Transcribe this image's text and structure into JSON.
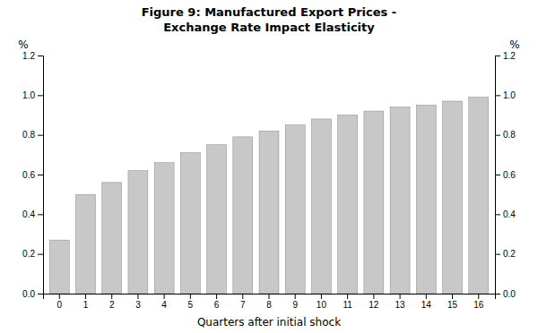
{
  "chart_data": {
    "type": "bar",
    "title": "Figure 9: Manufactured Export Prices -",
    "subtitle": "Exchange Rate Impact Elasticity",
    "xlabel": "Quarters after initial shock",
    "ylabel": "%",
    "y2label": "%",
    "categories": [
      0,
      1,
      2,
      3,
      4,
      5,
      6,
      7,
      8,
      9,
      10,
      11,
      12,
      13,
      14,
      15,
      16
    ],
    "values": [
      0.27,
      0.5,
      0.56,
      0.62,
      0.66,
      0.71,
      0.75,
      0.79,
      0.82,
      0.85,
      0.88,
      0.9,
      0.92,
      0.94,
      0.95,
      0.97,
      0.99
    ],
    "color": "#c8c8c8",
    "ylim": [
      0.0,
      1.2
    ],
    "yticks": [
      {
        "value": 0.0,
        "label": "0.0"
      },
      0.2,
      0.4,
      0.6,
      0.8,
      {
        "value": 1.0,
        "label": "1.0"
      },
      1.2
    ],
    "y2lim": [
      0.0,
      1.2
    ],
    "y2ticks": [
      {
        "value": 0.0,
        "label": "0.0"
      },
      0.2,
      0.4,
      0.6,
      0.8,
      {
        "value": 1.0,
        "label": "1.0"
      },
      1.2
    ],
    "grid": false
  }
}
